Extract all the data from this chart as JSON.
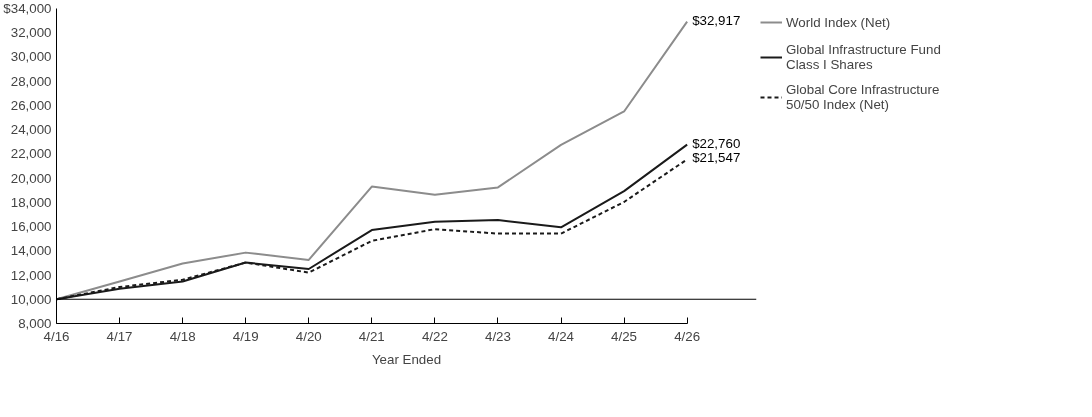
{
  "chart_data": {
    "type": "line",
    "xlabel": "Year Ended",
    "categories": [
      "4/16",
      "4/17",
      "4/18",
      "4/19",
      "4/20",
      "4/21",
      "4/22",
      "4/23",
      "4/24",
      "4/25",
      "4/26"
    ],
    "series": [
      {
        "name": "World Index (Net)",
        "color": "#8c8c8c",
        "line_style": "solid",
        "values": [
          10000,
          11460,
          12950,
          13850,
          13250,
          19300,
          18630,
          19230,
          22740,
          25500,
          32917
        ],
        "value_labels": [
          null,
          null,
          null,
          null,
          null,
          null,
          null,
          null,
          null,
          null,
          "$32,917"
        ]
      },
      {
        "name": "Global Infrastructure Fund Class I Shares",
        "color": "#1a1a1a",
        "line_style": "solid",
        "values": [
          10000,
          10860,
          11460,
          13030,
          12500,
          15710,
          16390,
          16540,
          15940,
          18930,
          22760
        ],
        "value_labels": [
          null,
          null,
          null,
          null,
          null,
          null,
          null,
          null,
          null,
          null,
          "$22,760"
        ]
      },
      {
        "name": "Global Core Infrastructure 50/50 Index (Net)",
        "color": "#1a1a1a",
        "line_style": "dashed",
        "values": [
          10000,
          11010,
          11610,
          13030,
          12200,
          14820,
          15790,
          15420,
          15420,
          18030,
          21547
        ],
        "value_labels": [
          null,
          null,
          null,
          null,
          null,
          null,
          null,
          null,
          null,
          null,
          "$21,547"
        ]
      }
    ],
    "ylim": [
      8000,
      34000
    ],
    "yticks": [
      {
        "value": 8000,
        "label": "8,000"
      },
      {
        "value": 10000,
        "label": "10,000"
      },
      {
        "value": 12000,
        "label": "12,000"
      },
      {
        "value": 14000,
        "label": "14,000"
      },
      {
        "value": 16000,
        "label": "16,000"
      },
      {
        "value": 18000,
        "label": "18,000"
      },
      {
        "value": 20000,
        "label": "20,000"
      },
      {
        "value": 22000,
        "label": "22,000"
      },
      {
        "value": 24000,
        "label": "24,000"
      },
      {
        "value": 26000,
        "label": "26,000"
      },
      {
        "value": 28000,
        "label": "28,000"
      },
      {
        "value": 30000,
        "label": "30,000"
      },
      {
        "value": 32000,
        "label": "32,000"
      },
      {
        "value": 34000,
        "label": "$34,000"
      }
    ],
    "ref_lines": [
      {
        "axis": "y",
        "value": 10000,
        "color": "#000000"
      }
    ],
    "grid": false,
    "legend": "right",
    "marker": "none"
  }
}
